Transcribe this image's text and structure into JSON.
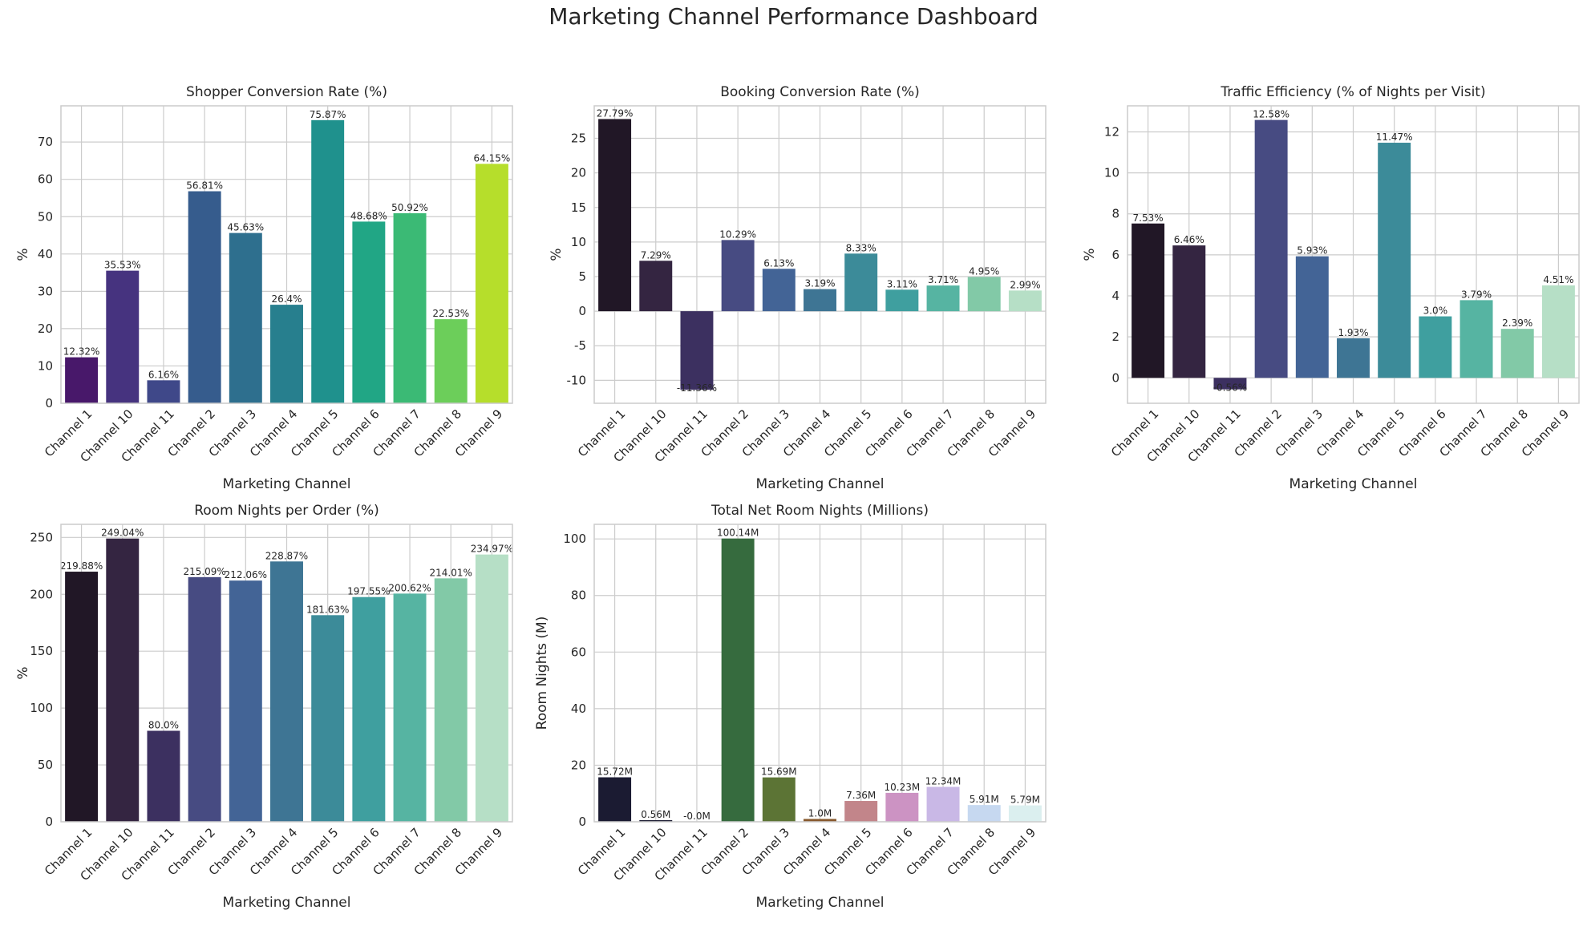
{
  "title": "Marketing Channel Performance Dashboard",
  "colors": {
    "grid": "#cccccc",
    "spine": "#cccccc",
    "text": "#262626",
    "viridis": [
      "#48186a",
      "#46337f",
      "#3f4889",
      "#365c8d",
      "#2e6f8e",
      "#277f8e",
      "#1f918d",
      "#21a685",
      "#3bba75",
      "#6cce5a",
      "#b6de2b"
    ],
    "mako": [
      "#211726",
      "#342541",
      "#3c3060",
      "#474b82",
      "#436496",
      "#3e7594",
      "#3c8b99",
      "#3f9f9f",
      "#56b4a2",
      "#82c9a7",
      "#b6dfc6"
    ],
    "mixed": [
      "#1b1b32",
      "#1b1b32",
      "#1b1b32",
      "#366b3e",
      "#5c7435",
      "#87592e",
      "#c2858a",
      "#cc93c3",
      "#c9b8e6",
      "#c6d8f0",
      "#dbefef"
    ]
  },
  "chart_data": [
    {
      "type": "bar",
      "title": "Shopper Conversion Rate (%)",
      "xlabel": "Marketing Channel",
      "ylabel": "%",
      "categories": [
        "Channel 1",
        "Channel 10",
        "Channel 11",
        "Channel 2",
        "Channel 3",
        "Channel 4",
        "Channel 5",
        "Channel 6",
        "Channel 7",
        "Channel 8",
        "Channel 9"
      ],
      "values": [
        12.32,
        35.53,
        6.16,
        56.81,
        45.63,
        26.4,
        75.87,
        48.68,
        50.92,
        22.53,
        64.15
      ],
      "labels": [
        "12.32%",
        "35.53%",
        "6.16%",
        "56.81%",
        "45.63%",
        "26.4%",
        "75.87%",
        "48.68%",
        "50.92%",
        "22.53%",
        "64.15%"
      ],
      "ylim": [
        0,
        79.7
      ],
      "yticks": [
        0,
        10,
        20,
        30,
        40,
        50,
        60,
        70
      ],
      "palette": "viridis",
      "grid": true
    },
    {
      "type": "bar",
      "title": "Booking Conversion Rate (%)",
      "xlabel": "Marketing Channel",
      "ylabel": "%",
      "categories": [
        "Channel 1",
        "Channel 10",
        "Channel 11",
        "Channel 2",
        "Channel 3",
        "Channel 4",
        "Channel 5",
        "Channel 6",
        "Channel 7",
        "Channel 8",
        "Channel 9"
      ],
      "values": [
        27.79,
        7.29,
        -11.36,
        10.29,
        6.13,
        3.19,
        8.33,
        3.11,
        3.71,
        4.95,
        2.99
      ],
      "labels": [
        "27.79%",
        "7.29%",
        "-11.36%",
        "10.29%",
        "6.13%",
        "3.19%",
        "8.33%",
        "3.11%",
        "3.71%",
        "4.95%",
        "2.99%"
      ],
      "ylim": [
        -13.32,
        29.7
      ],
      "yticks": [
        -10,
        -5,
        0,
        5,
        10,
        15,
        20,
        25
      ],
      "palette": "mako",
      "grid": true
    },
    {
      "type": "bar",
      "title": "Traffic Efficiency (% of Nights per Visit)",
      "xlabel": "Marketing Channel",
      "ylabel": "%",
      "categories": [
        "Channel 1",
        "Channel 10",
        "Channel 11",
        "Channel 2",
        "Channel 3",
        "Channel 4",
        "Channel 5",
        "Channel 6",
        "Channel 7",
        "Channel 8",
        "Channel 9"
      ],
      "values": [
        7.53,
        6.46,
        -0.56,
        12.58,
        5.93,
        1.93,
        11.47,
        3.0,
        3.79,
        2.39,
        4.51
      ],
      "labels": [
        "7.53%",
        "6.46%",
        "-0.56%",
        "12.58%",
        "5.93%",
        "1.93%",
        "11.47%",
        "3.0%",
        "3.79%",
        "2.39%",
        "4.51%"
      ],
      "ylim": [
        -1.24,
        13.27
      ],
      "yticks": [
        0,
        2,
        4,
        6,
        8,
        10,
        12
      ],
      "palette": "mako",
      "grid": true
    },
    {
      "type": "bar",
      "title": "Room Nights per Order (%)",
      "xlabel": "Marketing Channel",
      "ylabel": "%",
      "categories": [
        "Channel 1",
        "Channel 10",
        "Channel 11",
        "Channel 2",
        "Channel 3",
        "Channel 4",
        "Channel 5",
        "Channel 6",
        "Channel 7",
        "Channel 8",
        "Channel 9"
      ],
      "values": [
        219.88,
        249.04,
        80.0,
        215.09,
        212.06,
        228.87,
        181.63,
        197.55,
        200.62,
        214.01,
        234.97
      ],
      "labels": [
        "219.88%",
        "249.04%",
        "80.0%",
        "215.09%",
        "212.06%",
        "228.87%",
        "181.63%",
        "197.55%",
        "200.62%",
        "214.01%",
        "234.97%"
      ],
      "ylim": [
        0,
        261.5
      ],
      "yticks": [
        0,
        50,
        100,
        150,
        200,
        250
      ],
      "palette": "mako",
      "grid": true
    },
    {
      "type": "bar",
      "title": "Total Net Room Nights (Millions)",
      "xlabel": "Marketing Channel",
      "ylabel": "Room Nights (M)",
      "categories": [
        "Channel 1",
        "Channel 10",
        "Channel 11",
        "Channel 2",
        "Channel 3",
        "Channel 4",
        "Channel 5",
        "Channel 6",
        "Channel 7",
        "Channel 8",
        "Channel 9"
      ],
      "values": [
        15.72,
        0.56,
        -0.0,
        100.14,
        15.69,
        1.0,
        7.36,
        10.23,
        12.34,
        5.91,
        5.79
      ],
      "labels": [
        "15.72M",
        "0.56M",
        "-0.0M",
        "100.14M",
        "15.69M",
        "1.0M",
        "7.36M",
        "10.23M",
        "12.34M",
        "5.91M",
        "5.79M"
      ],
      "ylim": [
        0,
        105.15
      ],
      "yticks": [
        0,
        20,
        40,
        60,
        80,
        100
      ],
      "palette": "mixed",
      "grid": true
    }
  ]
}
